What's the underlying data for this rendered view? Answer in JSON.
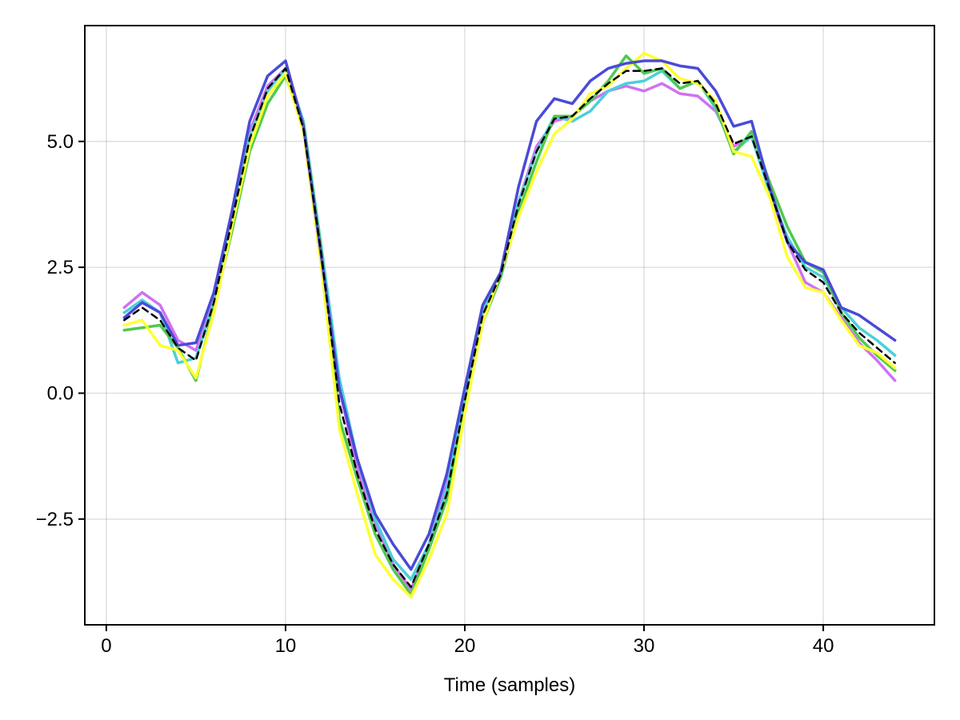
{
  "chart_data": {
    "type": "line",
    "title": "",
    "xlabel": "Time (samples)",
    "ylabel": "",
    "xlim": [
      -1.2,
      46.2
    ],
    "ylim": [
      -4.6,
      7.3
    ],
    "xticks": [
      0,
      10,
      20,
      30,
      40
    ],
    "xtick_labels": [
      "0",
      "10",
      "20",
      "30",
      "40"
    ],
    "yticks": [
      -2.5,
      0.0,
      2.5,
      5.0
    ],
    "ytick_labels": [
      "−2.5",
      "0.0",
      "2.5",
      "5.0"
    ],
    "grid": true,
    "legend": "none",
    "x": [
      1,
      2,
      3,
      4,
      5,
      6,
      7,
      8,
      9,
      10,
      11,
      12,
      13,
      14,
      15,
      16,
      17,
      18,
      19,
      20,
      21,
      22,
      23,
      24,
      25,
      26,
      27,
      28,
      29,
      30,
      31,
      32,
      33,
      34,
      35,
      36,
      37,
      38,
      39,
      40,
      41,
      42,
      43,
      44
    ],
    "series": [
      {
        "color": "#d070f5",
        "style": "solid",
        "values": [
          1.7,
          2.0,
          1.75,
          1.05,
          0.85,
          1.85,
          3.5,
          5.2,
          6.1,
          6.45,
          5.2,
          2.7,
          0.1,
          -1.5,
          -2.6,
          -3.4,
          -3.9,
          -3.0,
          -1.8,
          0.0,
          1.6,
          2.3,
          3.8,
          4.9,
          5.4,
          5.5,
          5.8,
          6.0,
          6.1,
          6.0,
          6.15,
          5.95,
          5.9,
          5.6,
          4.9,
          5.1,
          4.0,
          3.0,
          2.2,
          2.0,
          1.5,
          1.0,
          0.65,
          0.25
        ]
      },
      {
        "color": "#4ad0d8",
        "style": "solid",
        "values": [
          1.6,
          1.85,
          1.6,
          0.6,
          0.7,
          1.8,
          3.4,
          5.1,
          6.0,
          6.45,
          5.4,
          2.9,
          0.3,
          -1.3,
          -2.5,
          -3.3,
          -3.7,
          -3.0,
          -1.9,
          -0.1,
          1.65,
          2.3,
          3.8,
          4.8,
          5.5,
          5.4,
          5.6,
          6.0,
          6.15,
          6.2,
          6.4,
          6.05,
          6.2,
          5.65,
          4.8,
          5.1,
          4.0,
          3.1,
          2.5,
          2.3,
          1.7,
          1.3,
          1.05,
          0.75
        ]
      },
      {
        "color": "#4fc94f",
        "style": "solid",
        "values": [
          1.25,
          1.3,
          1.35,
          0.9,
          0.25,
          1.7,
          3.2,
          4.8,
          5.75,
          6.3,
          5.35,
          2.8,
          -0.5,
          -1.7,
          -2.8,
          -3.5,
          -4.0,
          -3.1,
          -2.1,
          -0.3,
          1.4,
          2.3,
          3.6,
          4.6,
          5.5,
          5.5,
          5.8,
          6.2,
          6.7,
          6.35,
          6.45,
          6.05,
          6.2,
          5.7,
          4.75,
          5.2,
          4.2,
          3.3,
          2.6,
          2.4,
          1.6,
          1.1,
          0.75,
          0.45
        ]
      },
      {
        "color": "#ffff33",
        "style": "solid",
        "values": [
          1.35,
          1.45,
          0.95,
          0.85,
          0.3,
          1.6,
          3.3,
          4.9,
          5.9,
          6.35,
          5.2,
          2.5,
          -0.7,
          -2.0,
          -3.2,
          -3.7,
          -4.05,
          -3.3,
          -2.4,
          -0.4,
          1.4,
          2.4,
          3.5,
          4.4,
          5.15,
          5.45,
          5.95,
          6.1,
          6.45,
          6.75,
          6.6,
          6.25,
          6.15,
          5.8,
          4.8,
          4.7,
          3.9,
          2.7,
          2.1,
          2.0,
          1.45,
          0.95,
          0.8,
          0.5
        ]
      },
      {
        "color": "#4a4ad8",
        "style": "solid",
        "values": [
          1.5,
          1.8,
          1.6,
          0.95,
          1.0,
          2.0,
          3.6,
          5.4,
          6.3,
          6.6,
          5.3,
          2.7,
          0.1,
          -1.3,
          -2.4,
          -3.0,
          -3.5,
          -2.8,
          -1.6,
          0.1,
          1.75,
          2.4,
          4.1,
          5.4,
          5.85,
          5.75,
          6.2,
          6.45,
          6.55,
          6.6,
          6.6,
          6.5,
          6.45,
          6.0,
          5.3,
          5.4,
          4.1,
          3.0,
          2.6,
          2.45,
          1.7,
          1.55,
          1.3,
          1.05
        ]
      },
      {
        "color": "#000000",
        "style": "dashed",
        "values": [
          1.45,
          1.7,
          1.45,
          0.9,
          0.65,
          1.8,
          3.4,
          5.05,
          6.05,
          6.45,
          5.25,
          2.75,
          -0.2,
          -1.6,
          -2.7,
          -3.4,
          -3.85,
          -3.0,
          -2.0,
          -0.15,
          1.55,
          2.35,
          3.75,
          4.8,
          5.45,
          5.5,
          5.85,
          6.15,
          6.4,
          6.4,
          6.45,
          6.15,
          6.2,
          5.75,
          4.95,
          5.1,
          4.05,
          3.0,
          2.45,
          2.2,
          1.6,
          1.2,
          0.9,
          0.6
        ]
      }
    ]
  }
}
